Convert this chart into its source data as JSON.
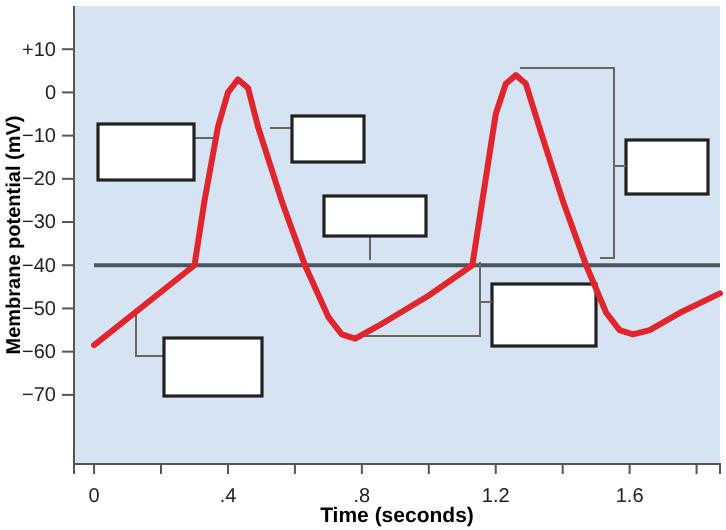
{
  "chart_data": {
    "type": "line",
    "xlabel": "Time (seconds)",
    "ylabel": "Membrane potential (mV)",
    "xlim": [
      -0.06,
      1.87
    ],
    "ylim": [
      -86,
      20
    ],
    "xticks": [
      0,
      {
        "value": 0.2,
        "label": null
      },
      {
        "value": 0.4,
        "label": ".4"
      },
      {
        "value": 0.6,
        "label": null
      },
      {
        "value": 0.8,
        "label": ".8"
      },
      {
        "value": 1.0,
        "label": null
      },
      1.2,
      {
        "value": 1.4,
        "label": null
      },
      1.6,
      {
        "value": 1.8,
        "label": null
      }
    ],
    "yticks": [
      {
        "value": 10,
        "label": "+10"
      },
      0,
      {
        "value": -10,
        "label": "−10"
      },
      {
        "value": -20,
        "label": "−20"
      },
      {
        "value": -30,
        "label": "−30"
      },
      {
        "value": -40,
        "label": "−40"
      },
      {
        "value": -50,
        "label": "−50"
      },
      {
        "value": -60,
        "label": "−60"
      },
      {
        "value": -70,
        "label": "−70"
      }
    ],
    "grid": false,
    "marker": "none",
    "line_style": "solid",
    "ref_lines": [
      {
        "axis": "y",
        "value": -40,
        "label": null,
        "color": "#4a5560"
      }
    ],
    "series": [
      {
        "color": "#e0262c",
        "x": [
          0,
          0.3,
          0.33,
          0.37,
          0.4,
          0.43,
          0.46,
          0.49,
          0.56,
          0.63,
          0.7,
          0.74,
          0.78,
          0.85,
          1.0,
          1.13,
          1.16,
          1.2,
          1.23,
          1.26,
          1.29,
          1.33,
          1.4,
          1.47,
          1.53,
          1.57,
          1.61,
          1.66,
          1.75,
          1.87
        ],
        "values": [
          -58.5,
          -40,
          -25,
          -8,
          0,
          3,
          1,
          -8,
          -25,
          -40,
          -52,
          -56,
          -57,
          -54,
          -47,
          -40,
          -25,
          -5,
          2,
          4,
          2,
          -8,
          -25,
          -40,
          -51,
          -55,
          -56,
          -55,
          -51,
          -46.5
        ]
      }
    ]
  }
}
